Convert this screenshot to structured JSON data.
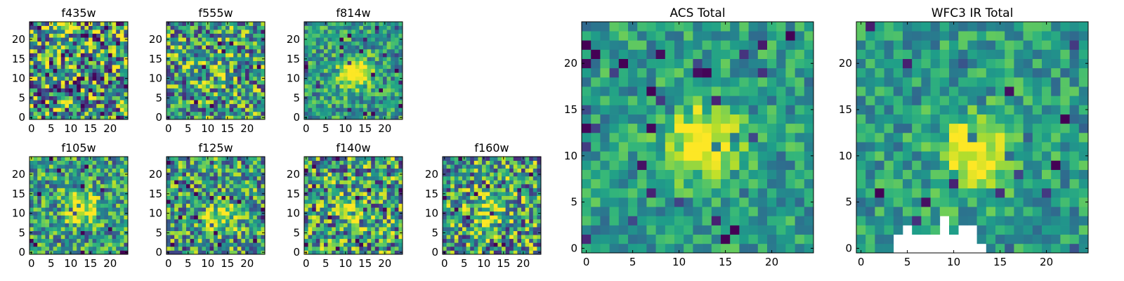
{
  "chart_data": [
    {
      "type": "heatmap",
      "title": "f435w",
      "xlabel": "",
      "ylabel": "",
      "xlim": [
        0,
        25
      ],
      "ylim": [
        0,
        25
      ],
      "xticks": [
        0,
        5,
        10,
        15,
        20
      ],
      "yticks": [
        0,
        5,
        10,
        15,
        20
      ],
      "grid_shape": [
        25,
        25
      ],
      "colormap": "viridis",
      "source_peak": null,
      "source_strength": 0.05,
      "noise_level": 0.55,
      "seed": 11
    },
    {
      "type": "heatmap",
      "title": "f555w",
      "xlabel": "",
      "ylabel": "",
      "xlim": [
        0,
        25
      ],
      "ylim": [
        0,
        25
      ],
      "xticks": [
        0,
        5,
        10,
        15,
        20
      ],
      "yticks": [
        0,
        5,
        10,
        15,
        20
      ],
      "grid_shape": [
        25,
        25
      ],
      "colormap": "viridis",
      "source_peak": [
        13,
        13
      ],
      "source_strength": 0.15,
      "noise_level": 0.45,
      "seed": 23
    },
    {
      "type": "heatmap",
      "title": "f814w",
      "xlabel": "",
      "ylabel": "",
      "xlim": [
        0,
        25
      ],
      "ylim": [
        0,
        25
      ],
      "xticks": [
        0,
        5,
        10,
        15,
        20
      ],
      "yticks": [
        0,
        5,
        10,
        15,
        20
      ],
      "grid_shape": [
        25,
        25
      ],
      "colormap": "viridis",
      "source_peak": [
        13,
        12
      ],
      "source_strength": 0.65,
      "noise_level": 0.28,
      "seed": 37
    },
    {
      "type": "heatmap",
      "title": "f105w",
      "xlabel": "",
      "ylabel": "",
      "xlim": [
        0,
        25
      ],
      "ylim": [
        0,
        25
      ],
      "xticks": [
        0,
        5,
        10,
        15,
        20
      ],
      "yticks": [
        0,
        5,
        10,
        15,
        20
      ],
      "grid_shape": [
        25,
        25
      ],
      "colormap": "viridis",
      "source_peak": [
        13,
        12
      ],
      "source_strength": 0.55,
      "noise_level": 0.35,
      "seed": 41
    },
    {
      "type": "heatmap",
      "title": "f125w",
      "xlabel": "",
      "ylabel": "",
      "xlim": [
        0,
        25
      ],
      "ylim": [
        0,
        25
      ],
      "xticks": [
        0,
        5,
        10,
        15,
        20
      ],
      "yticks": [
        0,
        5,
        10,
        15,
        20
      ],
      "grid_shape": [
        25,
        25
      ],
      "colormap": "viridis",
      "source_peak": [
        14,
        10
      ],
      "source_strength": 0.4,
      "noise_level": 0.4,
      "seed": 53
    },
    {
      "type": "heatmap",
      "title": "f140w",
      "xlabel": "",
      "ylabel": "",
      "xlim": [
        0,
        25
      ],
      "ylim": [
        0,
        25
      ],
      "xticks": [
        0,
        5,
        10,
        15,
        20
      ],
      "yticks": [
        0,
        5,
        10,
        15,
        20
      ],
      "grid_shape": [
        25,
        25
      ],
      "colormap": "viridis",
      "source_peak": [
        13,
        11
      ],
      "source_strength": 0.4,
      "noise_level": 0.45,
      "seed": 67
    },
    {
      "type": "heatmap",
      "title": "f160w",
      "xlabel": "",
      "ylabel": "",
      "xlim": [
        0,
        25
      ],
      "ylim": [
        0,
        25
      ],
      "xticks": [
        0,
        5,
        10,
        15,
        20
      ],
      "yticks": [
        0,
        5,
        10,
        15,
        20
      ],
      "grid_shape": [
        25,
        25
      ],
      "colormap": "viridis",
      "source_peak": [
        12,
        12
      ],
      "source_strength": 0.4,
      "noise_level": 0.45,
      "seed": 79
    },
    {
      "type": "heatmap",
      "title": "ACS Total",
      "xlabel": "",
      "ylabel": "",
      "xlim": [
        0,
        25
      ],
      "ylim": [
        0,
        25
      ],
      "xticks": [
        0,
        5,
        10,
        15,
        20
      ],
      "yticks": [
        0,
        5,
        10,
        15,
        20
      ],
      "grid_shape": [
        25,
        25
      ],
      "colormap": "viridis",
      "source_peak": [
        13,
        12
      ],
      "source_strength": 0.55,
      "noise_level": 0.22,
      "seed": 83
    },
    {
      "type": "heatmap",
      "title": "WFC3 IR Total",
      "xlabel": "",
      "ylabel": "",
      "xlim": [
        0,
        25
      ],
      "ylim": [
        0,
        25
      ],
      "xticks": [
        0,
        5,
        10,
        15,
        20
      ],
      "yticks": [
        0,
        5,
        10,
        15,
        20
      ],
      "grid_shape": [
        25,
        25
      ],
      "colormap": "viridis",
      "source_peak": [
        13,
        11
      ],
      "source_strength": 0.55,
      "noise_level": 0.22,
      "seed": 97,
      "masked_cells": [
        [
          4,
          1
        ],
        [
          5,
          1
        ],
        [
          6,
          1
        ],
        [
          7,
          1
        ],
        [
          8,
          1
        ],
        [
          9,
          1
        ],
        [
          10,
          1
        ],
        [
          11,
          1
        ],
        [
          12,
          1
        ],
        [
          4,
          0
        ],
        [
          5,
          0
        ],
        [
          6,
          0
        ],
        [
          7,
          0
        ],
        [
          8,
          0
        ],
        [
          9,
          0
        ],
        [
          10,
          0
        ],
        [
          11,
          0
        ],
        [
          12,
          0
        ],
        [
          13,
          0
        ],
        [
          5,
          2
        ],
        [
          9,
          2
        ],
        [
          9,
          3
        ],
        [
          11,
          2
        ],
        [
          12,
          2
        ]
      ]
    }
  ]
}
